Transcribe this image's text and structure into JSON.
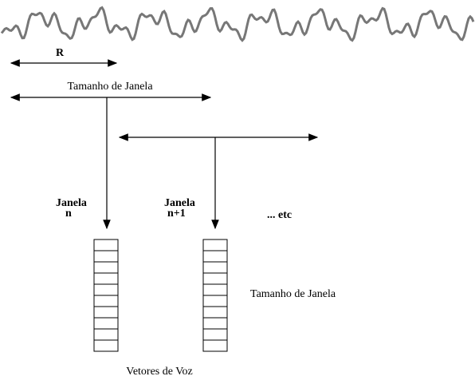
{
  "diagram": {
    "hop_label": "R",
    "window_size_label_top": "Tamanho de Janela",
    "window_n": {
      "line1": "Janela",
      "line2": "n"
    },
    "window_n1": {
      "line1": "Janela",
      "line2": "n+1"
    },
    "etc_label": "... etc",
    "window_size_label_right": "Tamanho de Janela",
    "vectors_label": "Vetores de Voz"
  }
}
